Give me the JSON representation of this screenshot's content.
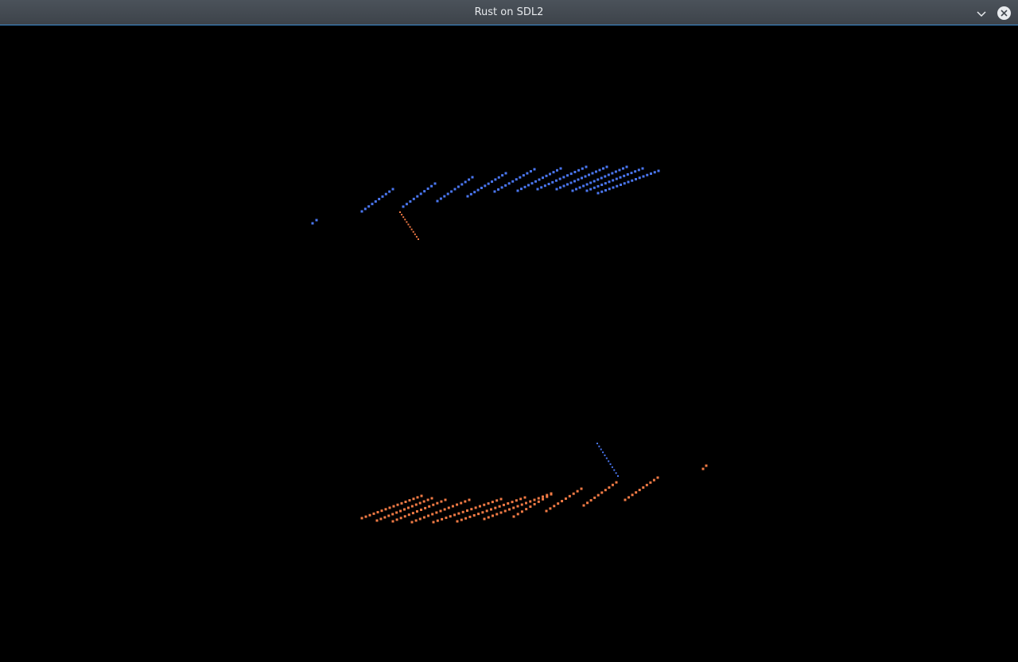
{
  "window": {
    "title": "Rust on SDL2"
  },
  "titlebar": {
    "buttons": [
      {
        "name": "minimize-menu",
        "icon": "chevron-down-icon"
      },
      {
        "name": "close",
        "icon": "close-icon"
      }
    ]
  },
  "colors": {
    "titlebar_bg": "#454b52",
    "accent_line": "#3f8fd6",
    "canvas_bg": "#000000",
    "blue_particles": "#4a76f0",
    "orange_particles": "#f07a45"
  }
}
